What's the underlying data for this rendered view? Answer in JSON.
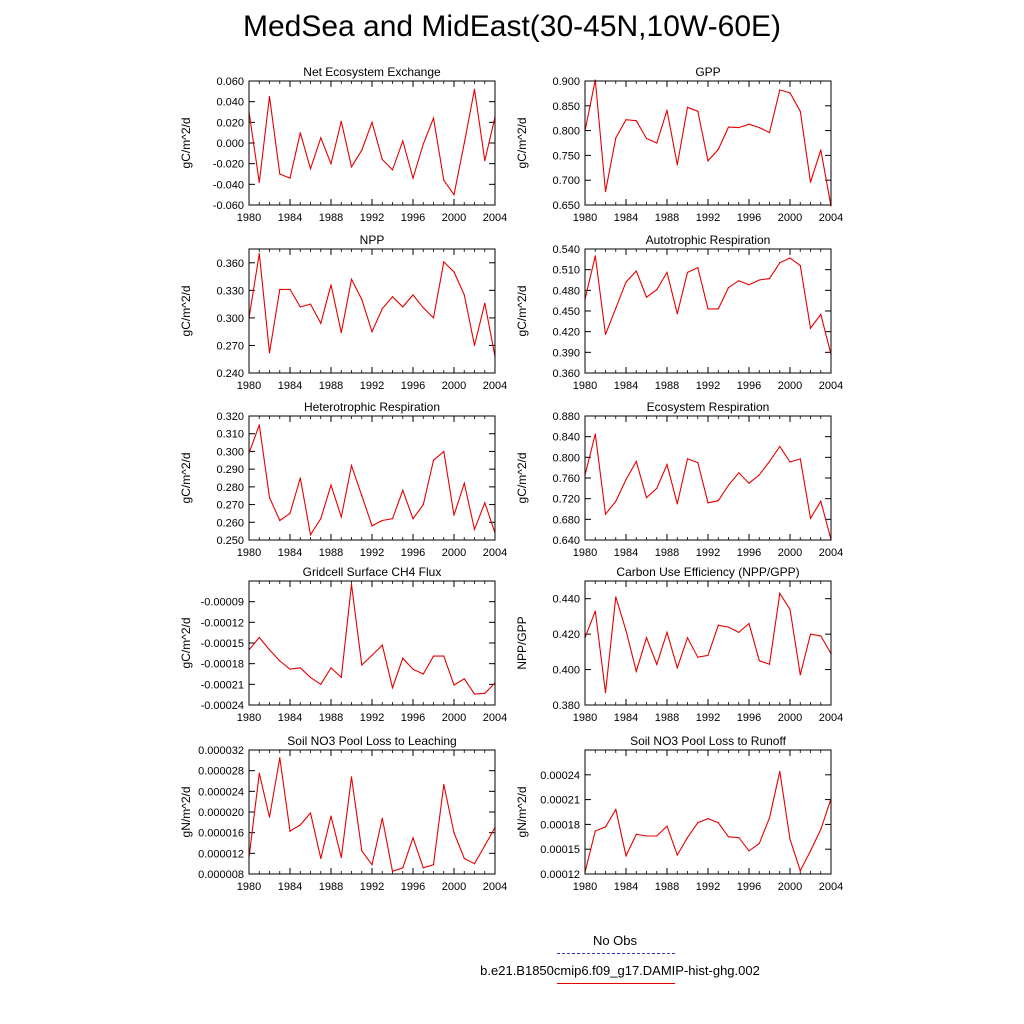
{
  "title": "MedSea and MidEast(30-45N,10W-60E)",
  "legend": {
    "obs_label": "No Obs",
    "obs_color": "#3535c8",
    "model_label": "b.e21.B1850cmip6.f09_g17.DAMIP-hist-ghg.002",
    "model_color": "#e60000"
  },
  "chart_data": [
    {
      "type": "line",
      "title": "Net Ecosystem Exchange",
      "ylabel": "gC/m^2/d",
      "xlim": [
        1980,
        2004
      ],
      "ylim": [
        -0.06,
        0.06
      ],
      "xticks": [
        "1980",
        "1984",
        "1988",
        "1992",
        "1996",
        "2000",
        "2004"
      ],
      "yticks": [
        "-0.060",
        "-0.040",
        "-0.020",
        "0.000",
        "0.020",
        "0.040",
        "0.060"
      ],
      "x": [
        1980,
        1981,
        1982,
        1983,
        1984,
        1985,
        1986,
        1987,
        1988,
        1989,
        1990,
        1991,
        1992,
        1993,
        1994,
        1995,
        1996,
        1997,
        1998,
        1999,
        2000,
        2001,
        2002,
        2003,
        2004
      ],
      "values": [
        0.03,
        -0.038,
        0.045,
        -0.03,
        -0.034,
        0.01,
        -0.025,
        0.005,
        -0.02,
        0.021,
        -0.023,
        -0.007,
        0.02,
        -0.016,
        -0.026,
        0.002,
        -0.034,
        -0.001,
        0.024,
        -0.036,
        -0.05,
        0.0,
        0.052,
        -0.017,
        0.025
      ]
    },
    {
      "type": "line",
      "title": "GPP",
      "ylabel": "gC/m^2/d",
      "xlim": [
        1980,
        2004
      ],
      "ylim": [
        0.65,
        0.9
      ],
      "xticks": [
        "1980",
        "1984",
        "1988",
        "1992",
        "1996",
        "2000",
        "2004"
      ],
      "yticks": [
        "0.650",
        "0.700",
        "0.750",
        "0.800",
        "0.850",
        "0.900"
      ],
      "x": [
        1980,
        1981,
        1982,
        1983,
        1984,
        1985,
        1986,
        1987,
        1988,
        1989,
        1990,
        1991,
        1992,
        1993,
        1994,
        1995,
        1996,
        1997,
        1998,
        1999,
        2000,
        2001,
        2002,
        2003,
        2004
      ],
      "values": [
        0.8,
        0.902,
        0.677,
        0.785,
        0.822,
        0.82,
        0.784,
        0.775,
        0.841,
        0.731,
        0.847,
        0.839,
        0.739,
        0.762,
        0.807,
        0.806,
        0.813,
        0.806,
        0.796,
        0.882,
        0.876,
        0.839,
        0.696,
        0.761,
        0.648
      ]
    },
    {
      "type": "line",
      "title": "NPP",
      "ylabel": "gC/m^2/d",
      "xlim": [
        1980,
        2004
      ],
      "ylim": [
        0.24,
        0.375
      ],
      "xticks": [
        "1980",
        "1984",
        "1988",
        "1992",
        "1996",
        "2000",
        "2004"
      ],
      "yticks": [
        "0.240",
        "0.270",
        "0.300",
        "0.330",
        "0.360"
      ],
      "x": [
        1980,
        1981,
        1982,
        1983,
        1984,
        1985,
        1986,
        1987,
        1988,
        1989,
        1990,
        1991,
        1992,
        1993,
        1994,
        1995,
        1996,
        1997,
        1998,
        1999,
        2000,
        2001,
        2002,
        2003,
        2004
      ],
      "values": [
        0.3,
        0.37,
        0.262,
        0.331,
        0.331,
        0.312,
        0.315,
        0.294,
        0.336,
        0.284,
        0.342,
        0.32,
        0.285,
        0.31,
        0.323,
        0.312,
        0.325,
        0.311,
        0.3,
        0.361,
        0.35,
        0.325,
        0.27,
        0.316,
        0.258
      ]
    },
    {
      "type": "line",
      "title": "Autotrophic Respiration",
      "ylabel": "gC/m^2/d",
      "xlim": [
        1980,
        2004
      ],
      "ylim": [
        0.36,
        0.54
      ],
      "xticks": [
        "1980",
        "1984",
        "1988",
        "1992",
        "1996",
        "2000",
        "2004"
      ],
      "yticks": [
        "0.360",
        "0.390",
        "0.420",
        "0.450",
        "0.480",
        "0.510",
        "0.540"
      ],
      "x": [
        1980,
        1981,
        1982,
        1983,
        1984,
        1985,
        1986,
        1987,
        1988,
        1989,
        1990,
        1991,
        1992,
        1993,
        1994,
        1995,
        1996,
        1997,
        1998,
        1999,
        2000,
        2001,
        2002,
        2003,
        2004
      ],
      "values": [
        0.467,
        0.53,
        0.416,
        0.454,
        0.492,
        0.508,
        0.47,
        0.481,
        0.506,
        0.446,
        0.506,
        0.513,
        0.453,
        0.453,
        0.484,
        0.494,
        0.488,
        0.495,
        0.497,
        0.52,
        0.527,
        0.516,
        0.425,
        0.445,
        0.387
      ]
    },
    {
      "type": "line",
      "title": "Heterotrophic Respiration",
      "ylabel": "gC/m^2/d",
      "xlim": [
        1980,
        2004
      ],
      "ylim": [
        0.25,
        0.32
      ],
      "xticks": [
        "1980",
        "1984",
        "1988",
        "1992",
        "1996",
        "2000",
        "2004"
      ],
      "yticks": [
        "0.250",
        "0.260",
        "0.270",
        "0.280",
        "0.290",
        "0.300",
        "0.310",
        "0.320"
      ],
      "x": [
        1980,
        1981,
        1982,
        1983,
        1984,
        1985,
        1986,
        1987,
        1988,
        1989,
        1990,
        1991,
        1992,
        1993,
        1994,
        1995,
        1996,
        1997,
        1998,
        1999,
        2000,
        2001,
        2002,
        2003,
        2004
      ],
      "values": [
        0.299,
        0.315,
        0.274,
        0.261,
        0.265,
        0.285,
        0.253,
        0.262,
        0.281,
        0.263,
        0.292,
        0.275,
        0.258,
        0.261,
        0.262,
        0.278,
        0.262,
        0.27,
        0.295,
        0.3,
        0.264,
        0.282,
        0.256,
        0.271,
        0.254
      ]
    },
    {
      "type": "line",
      "title": "Ecosystem Respiration",
      "ylabel": "gC/m^2/d",
      "xlim": [
        1980,
        2004
      ],
      "ylim": [
        0.64,
        0.88
      ],
      "xticks": [
        "1980",
        "1984",
        "1988",
        "1992",
        "1996",
        "2000",
        "2004"
      ],
      "yticks": [
        "0.640",
        "0.680",
        "0.720",
        "0.760",
        "0.800",
        "0.840",
        "0.880"
      ],
      "x": [
        1980,
        1981,
        1982,
        1983,
        1984,
        1985,
        1986,
        1987,
        1988,
        1989,
        1990,
        1991,
        1992,
        1993,
        1994,
        1995,
        1996,
        1997,
        1998,
        1999,
        2000,
        2001,
        2002,
        2003,
        2004
      ],
      "values": [
        0.766,
        0.845,
        0.69,
        0.715,
        0.757,
        0.792,
        0.722,
        0.74,
        0.786,
        0.71,
        0.797,
        0.79,
        0.712,
        0.716,
        0.746,
        0.77,
        0.75,
        0.766,
        0.792,
        0.821,
        0.791,
        0.797,
        0.682,
        0.715,
        0.641
      ]
    },
    {
      "type": "line",
      "title": "Gridcell Surface CH4 Flux",
      "ylabel": "gC/m^2/d",
      "xlim": [
        1980,
        2004
      ],
      "ylim": [
        -0.00024,
        -6e-05
      ],
      "xticks": [
        "1980",
        "1984",
        "1988",
        "1992",
        "1996",
        "2000",
        "2004"
      ],
      "yticks": [
        "-0.00024",
        "-0.00021",
        "-0.00018",
        "-0.00015",
        "-0.00012",
        "-0.00009"
      ],
      "x": [
        1980,
        1981,
        1982,
        1983,
        1984,
        1985,
        1986,
        1987,
        1988,
        1989,
        1990,
        1991,
        1992,
        1993,
        1994,
        1995,
        1996,
        1997,
        1998,
        1999,
        2000,
        2001,
        2002,
        2003,
        2004
      ],
      "values": [
        -0.00016,
        -0.000142,
        -0.00016,
        -0.000176,
        -0.000188,
        -0.000186,
        -0.0002,
        -0.00021,
        -0.000186,
        -0.0002,
        -6.5e-05,
        -0.000182,
        -0.000168,
        -0.000153,
        -0.000215,
        -0.000172,
        -0.000188,
        -0.000195,
        -0.000169,
        -0.000169,
        -0.000211,
        -0.000202,
        -0.000224,
        -0.000223,
        -0.000208
      ]
    },
    {
      "type": "line",
      "title": "Carbon Use Efficiency (NPP/GPP)",
      "ylabel": "NPP/GPP",
      "xlim": [
        1980,
        2004
      ],
      "ylim": [
        0.38,
        0.45
      ],
      "xticks": [
        "1980",
        "1984",
        "1988",
        "1992",
        "1996",
        "2000",
        "2004"
      ],
      "yticks": [
        "0.380",
        "0.400",
        "0.420",
        "0.440"
      ],
      "x": [
        1980,
        1981,
        1982,
        1983,
        1984,
        1985,
        1986,
        1987,
        1988,
        1989,
        1990,
        1991,
        1992,
        1993,
        1994,
        1995,
        1996,
        1997,
        1998,
        1999,
        2000,
        2001,
        2002,
        2003,
        2004
      ],
      "values": [
        0.418,
        0.433,
        0.387,
        0.441,
        0.422,
        0.399,
        0.418,
        0.403,
        0.421,
        0.401,
        0.418,
        0.407,
        0.408,
        0.425,
        0.424,
        0.421,
        0.426,
        0.405,
        0.403,
        0.443,
        0.434,
        0.397,
        0.42,
        0.419,
        0.409
      ]
    },
    {
      "type": "line",
      "title": "Soil NO3 Pool Loss to Leaching",
      "ylabel": "gN/m^2/d",
      "xlim": [
        1980,
        2004
      ],
      "ylim": [
        8e-06,
        3.2e-05
      ],
      "xticks": [
        "1980",
        "1984",
        "1988",
        "1992",
        "1996",
        "2000",
        "2004"
      ],
      "yticks": [
        "0.000008",
        "0.000012",
        "0.000016",
        "0.000020",
        "0.000024",
        "0.000028",
        "0.000032"
      ],
      "x": [
        1980,
        1981,
        1982,
        1983,
        1984,
        1985,
        1986,
        1987,
        1988,
        1989,
        1990,
        1991,
        1992,
        1993,
        1994,
        1995,
        1996,
        1997,
        1998,
        1999,
        2000,
        2001,
        2002,
        2003,
        2004
      ],
      "values": [
        1.12e-05,
        2.75e-05,
        1.9e-05,
        3.05e-05,
        1.63e-05,
        1.75e-05,
        1.98e-05,
        1.1e-05,
        1.92e-05,
        1.12e-05,
        2.68e-05,
        1.25e-05,
        9.8e-06,
        1.88e-05,
        8.5e-06,
        9.2e-06,
        1.5e-05,
        9.2e-06,
        9.8e-06,
        2.53e-05,
        1.6e-05,
        1.1e-05,
        1e-05,
        1.35e-05,
        1.7e-05
      ]
    },
    {
      "type": "line",
      "title": "Soil NO3 Pool Loss to Runoff",
      "ylabel": "gN/m^2/d",
      "xlim": [
        1980,
        2004
      ],
      "ylim": [
        0.00012,
        0.00027
      ],
      "xticks": [
        "1980",
        "1984",
        "1988",
        "1992",
        "1996",
        "2000",
        "2004"
      ],
      "yticks": [
        "0.00012",
        "0.00015",
        "0.00018",
        "0.00021",
        "0.00024"
      ],
      "x": [
        1980,
        1981,
        1982,
        1983,
        1984,
        1985,
        1986,
        1987,
        1988,
        1989,
        1990,
        1991,
        1992,
        1993,
        1994,
        1995,
        1996,
        1997,
        1998,
        1999,
        2000,
        2001,
        2002,
        2003,
        2004
      ],
      "values": [
        0.000122,
        0.000172,
        0.000177,
        0.000198,
        0.000142,
        0.000168,
        0.000166,
        0.000166,
        0.000178,
        0.000143,
        0.000164,
        0.000182,
        0.000187,
        0.000182,
        0.000165,
        0.000164,
        0.000148,
        0.000157,
        0.000188,
        0.000244,
        0.000162,
        0.000124,
        0.000148,
        0.000174,
        0.000211
      ]
    }
  ]
}
